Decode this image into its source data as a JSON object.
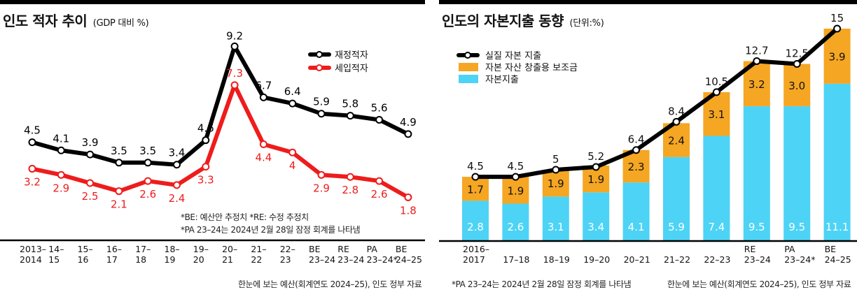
{
  "chart_data": [
    {
      "type": "line",
      "title": "인도 적자 추이",
      "subtitle": "(GDP 대비 %)",
      "categories": [
        [
          "2013–",
          "2014"
        ],
        [
          "14–",
          "15"
        ],
        [
          "15–",
          "16"
        ],
        [
          "16–",
          "17"
        ],
        [
          "17–",
          "18"
        ],
        [
          "18–",
          "19"
        ],
        [
          "19–",
          "20"
        ],
        [
          "20–",
          "21"
        ],
        [
          "21–",
          "22"
        ],
        [
          "22–",
          "23"
        ],
        [
          "BE",
          "23–24"
        ],
        [
          "RE",
          "23–24"
        ],
        [
          "PA",
          "23–24*"
        ],
        [
          "BE",
          "24–25"
        ]
      ],
      "series": [
        {
          "name": "재정적자",
          "color": "#000000",
          "values": [
            4.5,
            4.1,
            3.9,
            3.5,
            3.5,
            3.4,
            4.6,
            9.2,
            6.7,
            6.4,
            5.9,
            5.8,
            5.6,
            4.9
          ]
        },
        {
          "name": "세입적자",
          "color": "#ee1c1c",
          "values": [
            3.2,
            2.9,
            2.5,
            2.1,
            2.6,
            2.4,
            3.3,
            7.3,
            4.4,
            4,
            2.9,
            2.8,
            2.6,
            1.8
          ]
        }
      ],
      "labels": {
        "재정적자": [
          "4.5",
          "4.1",
          "3.9",
          "3.5",
          "3.5",
          "3.4",
          "4.6",
          "9.2",
          "6.7",
          "6.4",
          "5.9",
          "5.8",
          "5.6",
          "4.9"
        ],
        "세입적자": [
          "3.2",
          "2.9",
          "2.5",
          "2.1",
          "2.6",
          "2.4",
          "3.3",
          "7.3",
          "4.4",
          "4",
          "2.9",
          "2.8",
          "2.6",
          "1.8"
        ]
      },
      "ylim": [
        0,
        10
      ],
      "legend_position": "top-right",
      "grid": false,
      "notes": [
        "*BE: 예산안 추정치 *RE: 수정 추정치",
        "*PA 23–24는 2024년 2월 28일 잠정 회계를 나타냄"
      ],
      "source": "한눈에 보는 예산(회계연도 2024–25), 인도 정부 자료"
    },
    {
      "type": "bar",
      "stacked": true,
      "title": "인도의 자본지출 동향",
      "subtitle": "(단위:%)",
      "categories": [
        [
          "2016–",
          "2017"
        ],
        [
          "",
          "17–18"
        ],
        [
          "",
          "18–19"
        ],
        [
          "",
          "19–20"
        ],
        [
          "",
          "20–21"
        ],
        [
          "",
          "21–22"
        ],
        [
          "",
          "22–23"
        ],
        [
          "RE",
          "23–24"
        ],
        [
          "PA",
          "23–24*"
        ],
        [
          "BE",
          "24–25"
        ]
      ],
      "series": [
        {
          "name": "자본지출",
          "color": "#4dd3f5",
          "values": [
            2.8,
            2.6,
            3.1,
            3.4,
            4.1,
            5.9,
            7.4,
            9.5,
            9.5,
            11.1
          ],
          "labels": [
            "2.8",
            "2.6",
            "3.1",
            "3.4",
            "4.1",
            "5.9",
            "7.4",
            "9.5",
            "9.5",
            "11.1"
          ]
        },
        {
          "name": "자본 자산 창출용 보조금",
          "color": "#f5a623",
          "values": [
            1.7,
            1.9,
            1.9,
            1.9,
            2.3,
            2.4,
            3.1,
            3.2,
            3.0,
            3.9
          ],
          "labels": [
            "1.7",
            "1.9",
            "1.9",
            "1.9",
            "2.3",
            "2.4",
            "3.1",
            "3.2",
            "3.0",
            "3.9"
          ]
        }
      ],
      "line_series": {
        "name": "실질 자본 지출",
        "color": "#000000",
        "values": [
          4.5,
          4.5,
          5,
          5.2,
          6.4,
          8.4,
          10.5,
          12.7,
          12.5,
          15
        ],
        "labels": [
          "4.5",
          "4.5",
          "5",
          "5.2",
          "6.4",
          "8.4",
          "10.5",
          "12.7",
          "12.5",
          "15"
        ]
      },
      "ylim": [
        0,
        15
      ],
      "legend_position": "top-left",
      "grid": false,
      "notes": [
        "*PA 23–24는 2024년 2월 28일 잠정 회계를 나타냄"
      ],
      "source": "한눈에 보는 예산(회계연도 2024–25), 인도 정부 자료"
    }
  ]
}
